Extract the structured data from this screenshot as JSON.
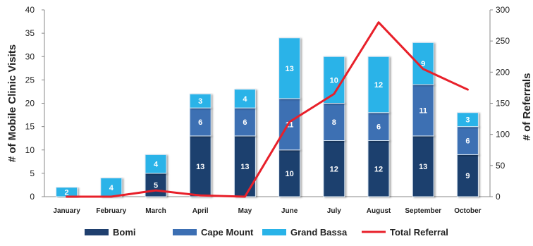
{
  "chart_data": {
    "type": "bar",
    "stacked": true,
    "categories": [
      "January",
      "February",
      "March",
      "April",
      "May",
      "June",
      "July",
      "August",
      "September",
      "October"
    ],
    "series": [
      {
        "name": "Bomi",
        "color": "#1f3f6e",
        "values": [
          0,
          0,
          5,
          13,
          13,
          10,
          12,
          12,
          13,
          9
        ],
        "labels": [
          "",
          "",
          "5",
          "13",
          "13",
          "10",
          "12",
          "12",
          "13",
          "9"
        ]
      },
      {
        "name": "Cape Mount",
        "color": "#3c6fb3",
        "values": [
          0,
          0,
          0,
          6,
          6,
          11,
          8,
          6,
          11,
          6
        ],
        "labels": [
          "",
          "",
          "",
          "6",
          "6",
          "11",
          "8",
          "6",
          "11",
          "6"
        ]
      },
      {
        "name": "Grand Bassa",
        "color": "#29b3e8",
        "values": [
          2,
          4,
          4,
          3,
          4,
          13,
          10,
          12,
          9,
          3
        ],
        "labels": [
          "2",
          "4",
          "4",
          "3",
          "4",
          "13",
          "10",
          "12",
          "9",
          "3"
        ]
      }
    ],
    "line_series": {
      "name": "Total Referral",
      "color": "#e8202a",
      "axis": "right",
      "values": [
        0,
        0,
        10,
        2,
        0,
        120,
        165,
        280,
        205,
        172
      ]
    },
    "ylabel": "# of Mobile Clinic Visits",
    "y2label": "# of Referrals",
    "ylim": [
      0,
      40
    ],
    "y2lim": [
      0,
      300
    ],
    "yticks": [
      "0",
      "5",
      "10",
      "15",
      "20",
      "25",
      "30",
      "35",
      "40"
    ],
    "y2ticks": [
      "0",
      "50",
      "100",
      "150",
      "200",
      "250",
      "300"
    ],
    "grid": false,
    "legend_position": "bottom"
  }
}
